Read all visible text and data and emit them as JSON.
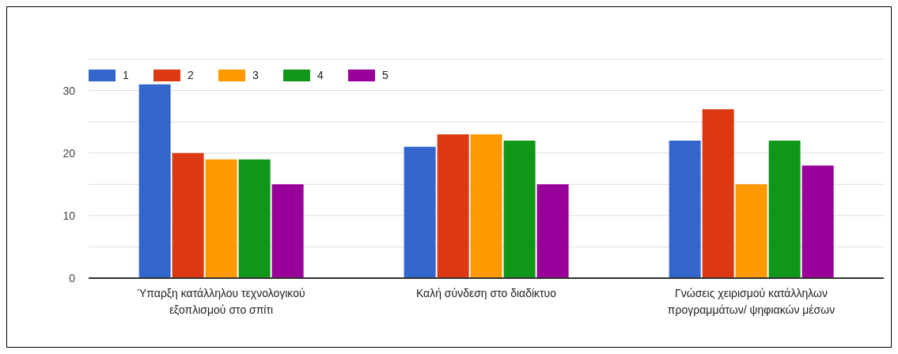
{
  "chart_data": {
    "type": "bar",
    "categories": [
      "Ύπαρξη κατάλληλου τεχνολογικού εξοπλισμού στο σπίτι",
      "Καλή σύνδεση στο διαδίκτυο",
      "Γνώσεις χειρισμού κατάλληλων προγραμμάτων/ ψηφιακών μέσων"
    ],
    "series": [
      {
        "name": "1",
        "color": "#3366cc",
        "values": [
          31,
          21,
          22
        ]
      },
      {
        "name": "2",
        "color": "#dc3912",
        "values": [
          20,
          23,
          27
        ]
      },
      {
        "name": "3",
        "color": "#ff9900",
        "values": [
          19,
          23,
          15
        ]
      },
      {
        "name": "4",
        "color": "#109618",
        "values": [
          19,
          22,
          22
        ]
      },
      {
        "name": "5",
        "color": "#990099",
        "values": [
          15,
          15,
          18
        ]
      }
    ],
    "ylim": [
      0,
      35
    ],
    "yticks": [
      0,
      {
        "value": 5,
        "label": null
      },
      10,
      {
        "value": 15,
        "label": null
      },
      20,
      {
        "value": 25,
        "label": null
      },
      30,
      {
        "value": 35,
        "label": null
      }
    ],
    "grid": "y",
    "legend": "top left"
  }
}
